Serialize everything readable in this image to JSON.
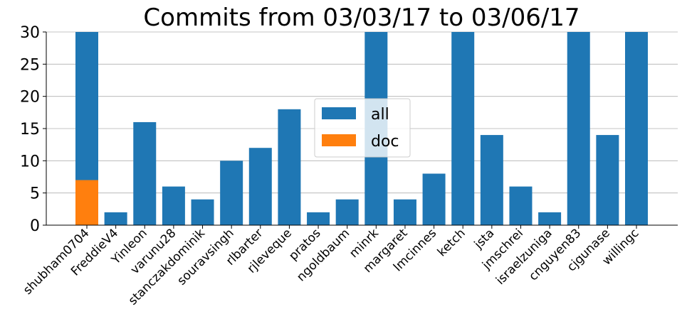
{
  "chart_data": {
    "type": "bar",
    "title": "Commits from 03/03/17 to 03/06/17",
    "xlabel": "",
    "ylabel": "",
    "ylim": [
      0,
      30
    ],
    "yticks": [
      "0",
      "5",
      "10",
      "15",
      "20",
      "25",
      "30"
    ],
    "grid": "horizontal",
    "legend_placement": "center",
    "categories": [
      "shubham0704",
      "FreddieV4",
      "Yinleon",
      "varunu28",
      "stanczakdominik",
      "souravsingh",
      "rlbarter",
      "rjleveque",
      "pratos",
      "ngoldbaum",
      "minrk",
      "margaret",
      "lmcinnes",
      "ketch",
      "jsta",
      "jmschrei",
      "israelzuniga",
      "cnguyen83",
      "cjgunase",
      "willingc"
    ],
    "series": [
      {
        "name": "all",
        "color": "#1f77b4",
        "values": [
          30,
          2,
          16,
          6,
          4,
          10,
          12,
          18,
          2,
          4,
          30,
          4,
          8,
          30,
          14,
          6,
          2,
          30,
          14,
          30
        ]
      },
      {
        "name": "doc",
        "color": "#ff7f0e",
        "values": [
          7,
          0,
          0,
          0,
          0,
          0,
          0,
          0,
          0,
          0,
          0,
          0,
          0,
          0,
          0,
          0,
          0,
          0,
          0,
          0
        ]
      }
    ]
  }
}
